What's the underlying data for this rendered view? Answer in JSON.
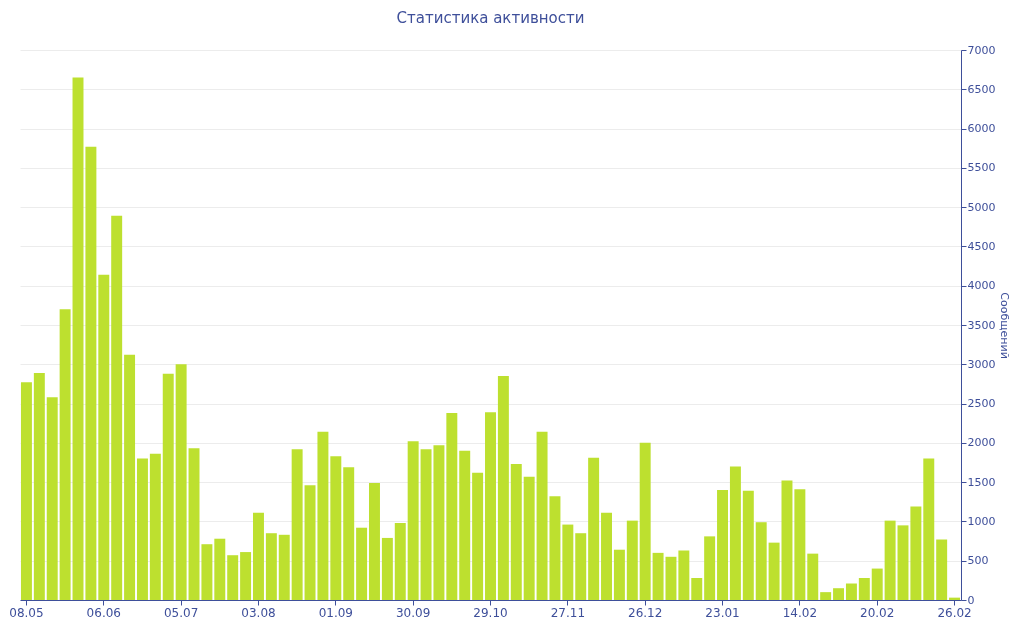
{
  "chart_data": {
    "type": "bar",
    "title": "Статистика активности",
    "ylabel": "Сообщений",
    "categories": [
      "08.05",
      null,
      null,
      null,
      null,
      null,
      "06.06",
      null,
      null,
      null,
      null,
      null,
      "05.07",
      null,
      null,
      null,
      null,
      null,
      "03.08",
      null,
      null,
      null,
      null,
      null,
      "01.09",
      null,
      null,
      null,
      null,
      null,
      "30.09",
      null,
      null,
      null,
      null,
      null,
      "29.10",
      null,
      null,
      null,
      null,
      null,
      "27.11",
      null,
      null,
      null,
      null,
      null,
      "26.12",
      null,
      null,
      null,
      null,
      null,
      "23.01",
      null,
      null,
      null,
      null,
      null,
      "14.02",
      null,
      null,
      null,
      null,
      null,
      "20.02",
      null,
      null,
      null,
      null,
      null,
      "26.02"
    ],
    "values": [
      2770,
      2890,
      2580,
      3700,
      6650,
      5770,
      4140,
      4890,
      3120,
      1800,
      1860,
      2880,
      3000,
      1930,
      710,
      780,
      570,
      610,
      1110,
      850,
      830,
      1920,
      1460,
      2140,
      1830,
      1690,
      920,
      1490,
      790,
      980,
      2020,
      1920,
      1970,
      2380,
      1900,
      1620,
      2390,
      2850,
      1730,
      1570,
      2140,
      1320,
      960,
      850,
      1810,
      1110,
      640,
      1010,
      2000,
      600,
      550,
      630,
      280,
      810,
      1400,
      1700,
      1390,
      990,
      730,
      1520,
      1410,
      590,
      100,
      150,
      210,
      280,
      400,
      1010,
      950,
      1190,
      1800,
      770,
      30
    ],
    "color": "#bde02f",
    "ylim": [
      0,
      7000
    ],
    "yticks": [
      0,
      500,
      1000,
      1500,
      2000,
      2500,
      3000,
      3500,
      4000,
      4500,
      5000,
      5500,
      6000,
      6500,
      7000
    ],
    "grid": "y"
  }
}
